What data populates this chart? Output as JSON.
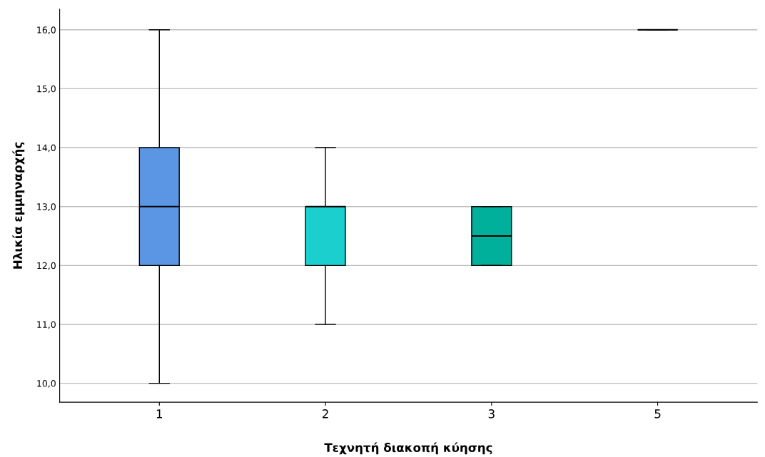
{
  "chart_data": {
    "type": "box",
    "xlabel": "Τεχνητή διακοπή κύησης",
    "ylabel": "Ηλικία εμμηναρχής",
    "categories": [
      "1",
      "2",
      "3",
      "5"
    ],
    "boxes": [
      {
        "low": 10,
        "q1": 12,
        "median": 13,
        "q3": 14,
        "high": 16
      },
      {
        "low": 11,
        "q1": 12,
        "median": 13,
        "q3": 13,
        "high": 14
      },
      {
        "low": 12,
        "q1": 12,
        "median": 12.5,
        "q3": 13,
        "high": 13
      },
      {
        "low": 16,
        "q1": 16,
        "median": 16,
        "q3": 16,
        "high": 16
      }
    ],
    "colors": [
      "#5a96e3",
      "#1ccfcf",
      "#00b09b",
      "#000000"
    ],
    "ylim": [
      9.68,
      16.35
    ],
    "yticks": [
      {
        "value": 10,
        "label": "10,0"
      },
      {
        "value": 11,
        "label": "11,0"
      },
      {
        "value": 12,
        "label": "12,0"
      },
      {
        "value": 13,
        "label": "13,0"
      },
      {
        "value": 14,
        "label": "14,0"
      },
      {
        "value": 15,
        "label": "15,0"
      },
      {
        "value": 16,
        "label": "16,0"
      }
    ],
    "grid": "y",
    "legend": false
  }
}
